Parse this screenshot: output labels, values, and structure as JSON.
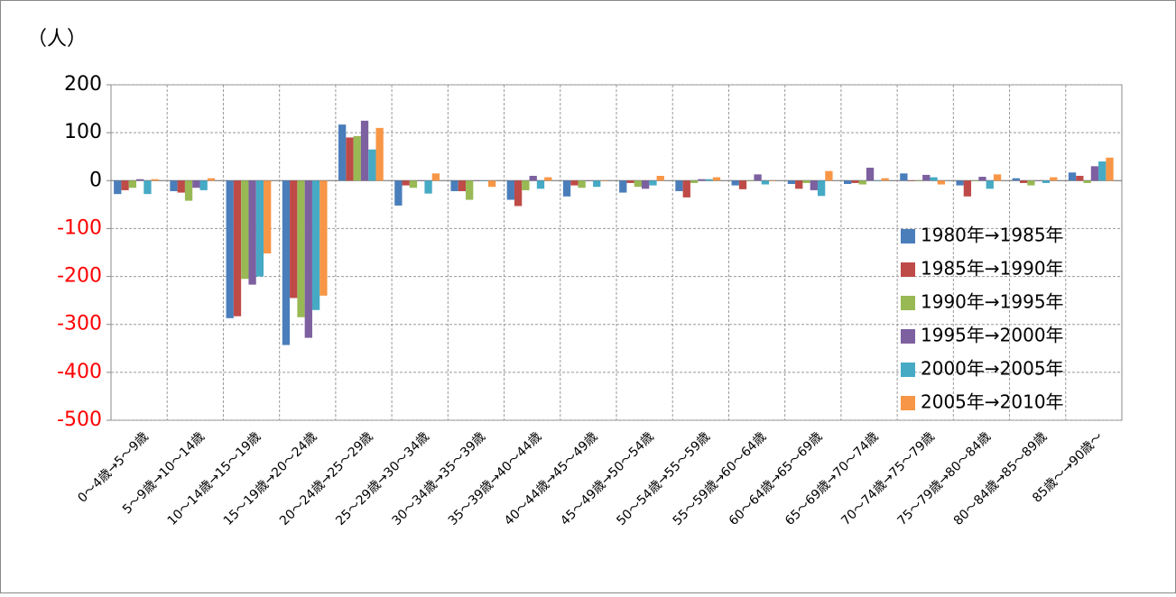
{
  "chart_data": {
    "type": "bar",
    "y_label": "（人）",
    "categories": [
      "0～4歳→5～9歳",
      "5～9歳→10～14歳",
      "10～14歳→15～19歳",
      "15～19歳→20～24歳",
      "20～24歳→25～29歳",
      "25～29歳→30～34歳",
      "30～34歳→35～39歳",
      "35～39歳→40～44歳",
      "40～44歳→45～49歳",
      "45～49歳→50～54歳",
      "50～54歳→55～59歳",
      "55～59歳→60～64歳",
      "60～64歳→65～69歳",
      "65～69歳→70～74歳",
      "70～74歳→75～79歳",
      "75～79歳→80～84歳",
      "80～84歳→85～89歳",
      "85歳～→90歳～"
    ],
    "series": [
      {
        "name": "1980年→1985年",
        "color": "#4a7ebb",
        "values": [
          -28,
          -22,
          -287,
          -343,
          117,
          -52,
          -22,
          -40,
          -33,
          -25,
          -22,
          -10,
          -7,
          -7,
          15,
          -10,
          5,
          17
        ]
      },
      {
        "name": "1985年→1990年",
        "color": "#be4b48",
        "values": [
          -20,
          -25,
          -283,
          -245,
          90,
          -10,
          -22,
          -53,
          -10,
          -5,
          -35,
          -18,
          -17,
          -5,
          0,
          -33,
          -5,
          10
        ]
      },
      {
        "name": "1990年→1995年",
        "color": "#98b954",
        "values": [
          -15,
          -42,
          -205,
          -285,
          93,
          -15,
          -40,
          -20,
          -15,
          -13,
          -5,
          0,
          -5,
          -8,
          0,
          0,
          -10,
          -5
        ]
      },
      {
        "name": "1995年→2000年",
        "color": "#7d60a0",
        "values": [
          3,
          -15,
          -217,
          -328,
          125,
          0,
          0,
          10,
          0,
          -17,
          3,
          13,
          -20,
          27,
          12,
          8,
          0,
          30
        ]
      },
      {
        "name": "2000年→2005年",
        "color": "#46aac5",
        "values": [
          -28,
          -20,
          -200,
          -270,
          65,
          -27,
          0,
          -17,
          -13,
          -10,
          3,
          -8,
          -32,
          0,
          7,
          -17,
          -5,
          40
        ]
      },
      {
        "name": "2005年→2010年",
        "color": "#f79646",
        "values": [
          3,
          5,
          -152,
          -240,
          110,
          15,
          -13,
          7,
          0,
          10,
          7,
          0,
          20,
          5,
          -8,
          13,
          7,
          48
        ]
      }
    ],
    "ylim": [
      -500,
      200
    ],
    "yticks": [
      -500,
      -400,
      -300,
      -200,
      -100,
      0,
      100,
      200
    ],
    "grid": true,
    "negative_tick_color": "#ff0000",
    "legend_position": "right"
  }
}
